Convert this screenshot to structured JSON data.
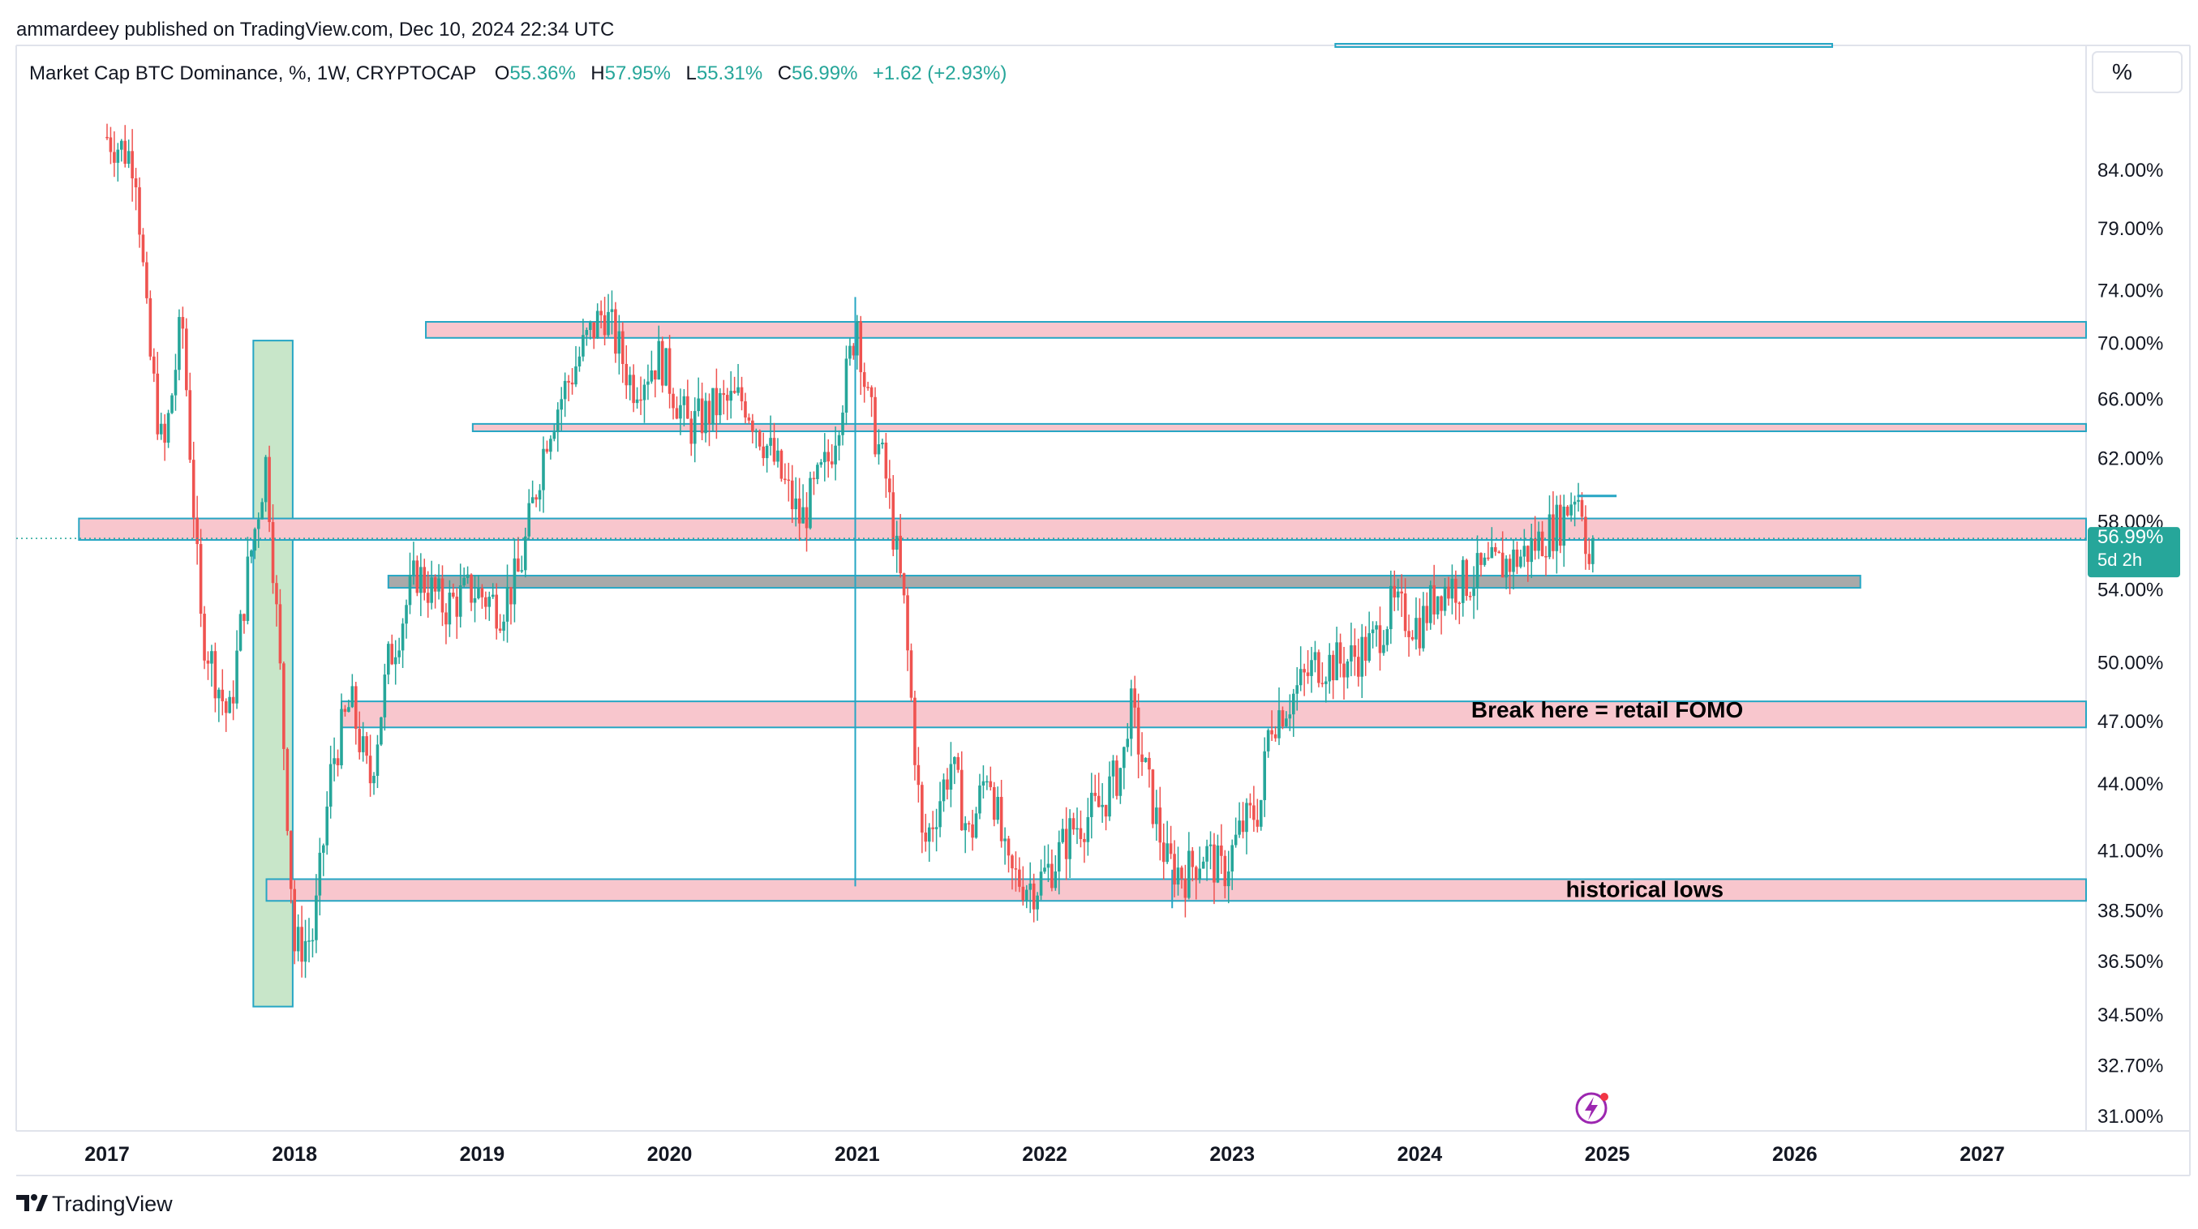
{
  "header": {
    "published": "ammardeey published on TradingView.com, Dec 10, 2024 22:34 UTC",
    "symbol": "Market Cap BTC Dominance, %, 1W, CRYPTOCAP",
    "o_label": "O",
    "o_value": "55.36%",
    "h_label": "H",
    "h_value": "57.95%",
    "l_label": "L",
    "l_value": "55.31%",
    "c_label": "C",
    "c_value": "56.99%",
    "change": "+1.62 (+2.93%)"
  },
  "scale_button": {
    "label": "%"
  },
  "price_badge": {
    "value": "56.99%",
    "countdown": "5d 2h"
  },
  "footer": {
    "logo_text": "TradingView"
  },
  "colors": {
    "up": "#26a69a",
    "down": "#ef5350",
    "zone_fill": "#f8c6cd",
    "zone_border": "#26a6c4",
    "grey_zone": "#a9a9a9",
    "green_zone": "#c8e6c9"
  },
  "icons": {
    "logo": "tradingview-logo-icon",
    "flash": "lightning-icon"
  },
  "chart_data": {
    "type": "candlestick",
    "timeframe": "1W",
    "y_scale": "log",
    "y_ticks": [
      "84.00%",
      "79.00%",
      "74.00%",
      "70.00%",
      "66.00%",
      "62.00%",
      "58.00%",
      "54.00%",
      "50.00%",
      "47.00%",
      "44.00%",
      "41.00%",
      "38.50%",
      "36.50%",
      "34.50%",
      "32.70%",
      "31.00%"
    ],
    "x_ticks": [
      "2017",
      "2018",
      "2019",
      "2020",
      "2021",
      "2022",
      "2023",
      "2024",
      "2025",
      "2026",
      "2027"
    ],
    "close_path": [
      [
        2017.0,
        87.0
      ],
      [
        2017.15,
        85.0
      ],
      [
        2017.22,
        70.0
      ],
      [
        2017.3,
        62.0
      ],
      [
        2017.4,
        72.0
      ],
      [
        2017.5,
        52.0
      ],
      [
        2017.65,
        47.0
      ],
      [
        2017.75,
        55.0
      ],
      [
        2017.85,
        62.0
      ],
      [
        2017.92,
        50.0
      ],
      [
        2018.0,
        37.0
      ],
      [
        2018.1,
        37.5
      ],
      [
        2018.2,
        45.0
      ],
      [
        2018.3,
        48.0
      ],
      [
        2018.4,
        44.0
      ],
      [
        2018.5,
        50.0
      ],
      [
        2018.65,
        55.0
      ],
      [
        2018.8,
        53.0
      ],
      [
        2018.95,
        54.0
      ],
      [
        2019.1,
        53.0
      ],
      [
        2019.2,
        55.0
      ],
      [
        2019.35,
        64.0
      ],
      [
        2019.55,
        70.0
      ],
      [
        2019.65,
        72.5
      ],
      [
        2019.8,
        67.0
      ],
      [
        2019.95,
        69.0
      ],
      [
        2020.1,
        64.0
      ],
      [
        2020.25,
        65.5
      ],
      [
        2020.4,
        66.0
      ],
      [
        2020.55,
        62.0
      ],
      [
        2020.7,
        58.0
      ],
      [
        2020.85,
        62.0
      ],
      [
        2020.95,
        68.0
      ],
      [
        2021.0,
        72.0
      ],
      [
        2021.05,
        66.0
      ],
      [
        2021.15,
        61.0
      ],
      [
        2021.25,
        53.0
      ],
      [
        2021.35,
        41.0
      ],
      [
        2021.5,
        45.0
      ],
      [
        2021.6,
        41.5
      ],
      [
        2021.7,
        45.0
      ],
      [
        2021.8,
        40.0
      ],
      [
        2021.95,
        39.5
      ],
      [
        2022.05,
        40.5
      ],
      [
        2022.15,
        42.0
      ],
      [
        2022.3,
        43.0
      ],
      [
        2022.42,
        45.0
      ],
      [
        2022.45,
        48.0
      ],
      [
        2022.55,
        44.0
      ],
      [
        2022.65,
        40.5
      ],
      [
        2022.75,
        40.0
      ],
      [
        2022.85,
        41.0
      ],
      [
        2022.95,
        40.0
      ],
      [
        2023.05,
        42.0
      ],
      [
        2023.15,
        43.0
      ],
      [
        2023.2,
        47.0
      ],
      [
        2023.3,
        48.0
      ],
      [
        2023.45,
        50.0
      ],
      [
        2023.6,
        50.0
      ],
      [
        2023.75,
        51.0
      ],
      [
        2023.85,
        53.0
      ],
      [
        2024.0,
        52.0
      ],
      [
        2024.1,
        54.0
      ],
      [
        2024.25,
        54.5
      ],
      [
        2024.35,
        55.0
      ],
      [
        2024.45,
        55.5
      ],
      [
        2024.55,
        56.0
      ],
      [
        2024.65,
        57.0
      ],
      [
        2024.75,
        58.0
      ],
      [
        2024.83,
        60.0
      ],
      [
        2024.87,
        59.0
      ],
      [
        2024.9,
        55.3
      ],
      [
        2024.94,
        56.99
      ]
    ],
    "zones": [
      {
        "from": 2018.7,
        "to": 2027.6,
        "low": 70.4,
        "high": 71.6
      },
      {
        "from": 2018.95,
        "to": 2027.6,
        "low": 63.8,
        "high": 64.3
      },
      {
        "from": 2016.85,
        "to": 2027.6,
        "low": 56.9,
        "high": 58.2
      },
      {
        "from": 2018.5,
        "to": 2026.35,
        "low": 54.1,
        "high": 54.8
      },
      {
        "from": 2018.25,
        "to": 2027.6,
        "low": 46.7,
        "high": 48.0
      },
      {
        "from": 2017.85,
        "to": 2027.6,
        "low": 38.9,
        "high": 39.8
      }
    ],
    "annotations": [
      {
        "text": "Break here = retail FOMO",
        "x": 2025.0,
        "y": 47.6
      },
      {
        "text": "historical lows",
        "x": 2025.2,
        "y": 39.4
      }
    ],
    "last_close": 56.99
  }
}
